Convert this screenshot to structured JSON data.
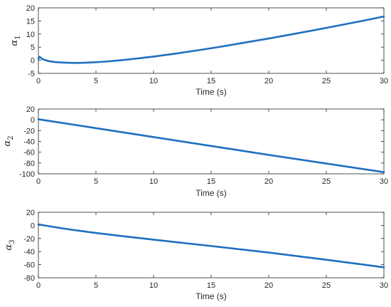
{
  "figure": {
    "line_color": "#1f6fbf",
    "axis_color": "#262626",
    "background": "#ffffff"
  },
  "chart_data": [
    {
      "type": "line",
      "ylabel_symbol": "α",
      "ylabel_subscript": "1",
      "xlabel": "Time (s)",
      "xlim": [
        0,
        30
      ],
      "ylim": [
        -5,
        20
      ],
      "xticks": [
        0,
        5,
        10,
        15,
        20,
        25,
        30
      ],
      "yticks": [
        -5,
        0,
        5,
        10,
        15,
        20
      ],
      "grid": false,
      "series": [
        {
          "x": [
            0,
            0.05,
            0.1,
            0.2,
            0.3,
            0.5,
            0.8,
            1,
            1.5,
            2,
            2.5,
            3,
            3.5,
            4,
            5,
            6,
            7,
            8,
            9,
            10,
            12,
            14,
            16,
            18,
            20,
            22,
            24,
            26,
            28,
            30
          ],
          "values": [
            0.5,
            0.9,
            1.3,
            1.0,
            0.6,
            0.2,
            -0.2,
            -0.4,
            -0.7,
            -0.85,
            -0.95,
            -1.0,
            -1.0,
            -0.95,
            -0.75,
            -0.45,
            -0.05,
            0.4,
            0.9,
            1.4,
            2.6,
            3.9,
            5.3,
            6.8,
            8.3,
            9.9,
            11.5,
            13.2,
            14.9,
            16.7
          ]
        }
      ]
    },
    {
      "type": "line",
      "ylabel_symbol": "α",
      "ylabel_subscript": "2",
      "xlabel": "Time (s)",
      "xlim": [
        0,
        30
      ],
      "ylim": [
        -100,
        20
      ],
      "xticks": [
        0,
        5,
        10,
        15,
        20,
        25,
        30
      ],
      "yticks": [
        -100,
        -80,
        -60,
        -40,
        -20,
        0,
        20
      ],
      "grid": false,
      "series": [
        {
          "x": [
            0,
            5,
            10,
            15,
            20,
            25,
            30
          ],
          "values": [
            1,
            -15.5,
            -32,
            -48.5,
            -65,
            -81,
            -97
          ]
        }
      ]
    },
    {
      "type": "line",
      "ylabel_symbol": "α",
      "ylabel_subscript": "3",
      "xlabel": "Time (s)",
      "xlim": [
        0,
        30
      ],
      "ylim": [
        -80,
        20
      ],
      "xticks": [
        0,
        5,
        10,
        15,
        20,
        25,
        30
      ],
      "yticks": [
        -80,
        -60,
        -40,
        -20,
        0,
        20
      ],
      "grid": false,
      "series": [
        {
          "x": [
            0,
            1,
            2,
            3,
            4,
            5,
            7,
            10,
            15,
            20,
            25,
            30
          ],
          "values": [
            1.5,
            -1.5,
            -4.3,
            -6.9,
            -9.3,
            -11.6,
            -15.8,
            -21.8,
            -31.5,
            -41.5,
            -52.5,
            -64
          ]
        }
      ]
    }
  ]
}
